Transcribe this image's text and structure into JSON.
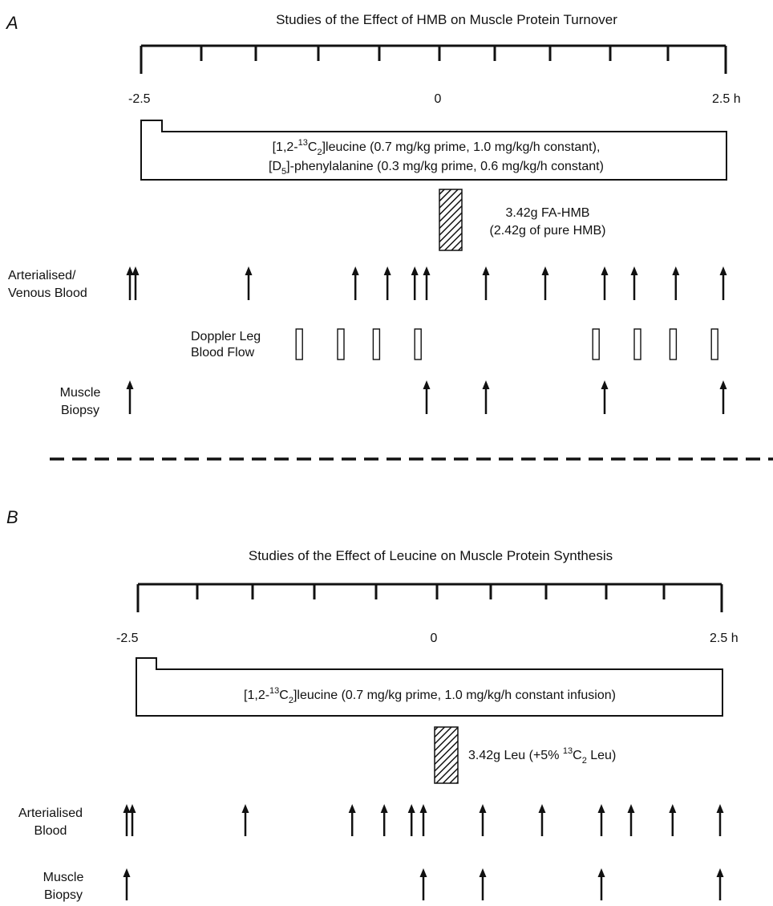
{
  "panel_a": {
    "letter": "A",
    "title": "Studies of the Effect of HMB on Muscle Protein Turnover",
    "axis_labels": {
      "start": "-2.5",
      "zero": "0",
      "end": "2.5 h"
    },
    "infusion": {
      "line1": {
        "pre": "[1,2-",
        "sup": "13",
        "mid": "C",
        "sub": "2",
        "post": "]leucine  (0.7 mg/kg prime, 1.0 mg/kg/h constant),"
      },
      "line2": {
        "pre": "[D",
        "sub": "5",
        "post": "]-phenylalanine (0.3 mg/kg prime, 0.6 mg/kg/h constant)"
      }
    },
    "bolus_line1": "3.42g FA-HMB",
    "bolus_line2": "(2.42g of pure HMB)",
    "blood_label_1": "Arterialised/",
    "blood_label_2": "Venous Blood",
    "doppler_label_1": "Doppler Leg",
    "doppler_label_2": "Blood Flow",
    "biopsy_label_1": "Muscle",
    "biopsy_label_2": "Biopsy",
    "blood_times_h": [
      -2.5,
      -2.5,
      -1.5,
      -0.6,
      -0.33,
      -0.1,
      0,
      0.5,
      1,
      1.5,
      1.75,
      2.1,
      2.5
    ],
    "doppler_times_h": [
      -1.1,
      -0.75,
      -0.45,
      -0.1,
      1.4,
      1.75,
      2.05,
      2.4
    ],
    "biopsy_times_h": [
      -2.5,
      0,
      0.5,
      1.5,
      2.5
    ]
  },
  "panel_b": {
    "letter": "B",
    "title": "Studies of the Effect of Leucine on Muscle Protein Synthesis",
    "axis_labels": {
      "start": "-2.5",
      "zero": "0",
      "end": "2.5 h"
    },
    "infusion": {
      "line1": {
        "pre": "[1,2-",
        "sup": "13",
        "mid": "C",
        "sub": "2",
        "post": "]leucine  (0.7 mg/kg prime, 1.0 mg/kg/h constant infusion)"
      }
    },
    "bolus": {
      "pre": "3.42g Leu (+5% ",
      "sup": "13",
      "mid": "C",
      "sub": "2",
      "post": " Leu)"
    },
    "blood_label_1": "Arterialised",
    "blood_label_2": "Blood",
    "biopsy_label_1": "Muscle",
    "biopsy_label_2": "Biopsy",
    "blood_times_h": [
      -2.5,
      -2.5,
      -1.5,
      -0.6,
      -0.33,
      -0.1,
      0,
      0.5,
      1,
      1.5,
      1.75,
      2.1,
      2.5
    ],
    "biopsy_times_h": [
      -2.5,
      0,
      0.5,
      1.5,
      2.5
    ]
  }
}
